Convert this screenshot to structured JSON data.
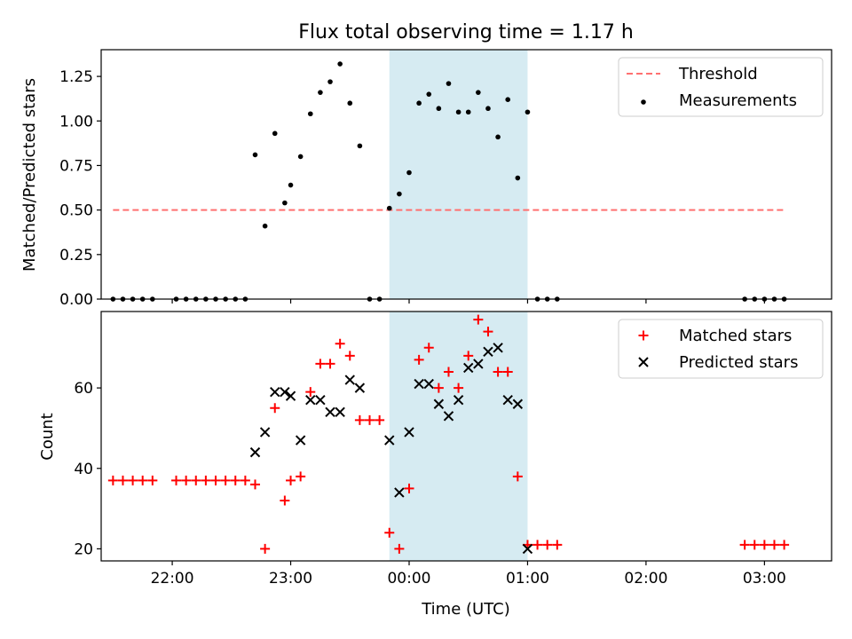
{
  "chart_data": [
    {
      "type": "scatter",
      "title": "Flux total observing time = 1.17 h",
      "xlabel": "",
      "ylabel": "Matched/Predicted stars",
      "ylim": [
        0,
        1.4
      ],
      "yticks": [
        "0.00",
        "0.25",
        "0.50",
        "0.75",
        "1.00",
        "1.25"
      ],
      "legend": {
        "placement": "top-right",
        "entries": [
          "Threshold",
          "Measurements"
        ]
      },
      "shaded_region": {
        "start": "23:50",
        "end": "01:00",
        "color": "#add8e6"
      },
      "threshold": {
        "name": "Threshold",
        "y": 0.5,
        "x_start": "21:30",
        "x_end": "03:10",
        "color": "#ff7070",
        "style": "dashed"
      },
      "series": [
        {
          "name": "Measurements",
          "color": "#000000",
          "marker": "dot",
          "points": [
            [
              "21:30",
              0
            ],
            [
              "21:35",
              0
            ],
            [
              "21:40",
              0
            ],
            [
              "21:45",
              0
            ],
            [
              "21:50",
              0
            ],
            [
              "22:02",
              0
            ],
            [
              "22:07",
              0
            ],
            [
              "22:12",
              0
            ],
            [
              "22:17",
              0
            ],
            [
              "22:22",
              0
            ],
            [
              "22:27",
              0
            ],
            [
              "22:32",
              0
            ],
            [
              "22:37",
              0
            ],
            [
              "22:42",
              0.81
            ],
            [
              "22:47",
              0.41
            ],
            [
              "22:52",
              0.93
            ],
            [
              "22:57",
              0.54
            ],
            [
              "23:00",
              0.64
            ],
            [
              "23:05",
              0.8
            ],
            [
              "23:10",
              1.04
            ],
            [
              "23:15",
              1.16
            ],
            [
              "23:20",
              1.22
            ],
            [
              "23:25",
              1.32
            ],
            [
              "23:30",
              1.1
            ],
            [
              "23:35",
              0.86
            ],
            [
              "23:40",
              0
            ],
            [
              "23:45",
              0
            ],
            [
              "23:50",
              0.51
            ],
            [
              "23:55",
              0.59
            ],
            [
              "00:00",
              0.71
            ],
            [
              "00:05",
              1.1
            ],
            [
              "00:10",
              1.15
            ],
            [
              "00:15",
              1.07
            ],
            [
              "00:20",
              1.21
            ],
            [
              "00:25",
              1.05
            ],
            [
              "00:30",
              1.05
            ],
            [
              "00:35",
              1.16
            ],
            [
              "00:40",
              1.07
            ],
            [
              "00:45",
              0.91
            ],
            [
              "00:50",
              1.12
            ],
            [
              "00:55",
              0.68
            ],
            [
              "01:00",
              1.05
            ],
            [
              "01:05",
              0
            ],
            [
              "01:10",
              0
            ],
            [
              "01:15",
              0
            ],
            [
              "02:50",
              0
            ],
            [
              "02:55",
              0
            ],
            [
              "03:00",
              0
            ],
            [
              "03:05",
              0
            ],
            [
              "03:10",
              0
            ]
          ]
        }
      ]
    },
    {
      "type": "scatter",
      "title": "",
      "xlabel": "Time (UTC)",
      "ylabel": "Count",
      "ylim": [
        17,
        79
      ],
      "yticks": [
        "20",
        "40",
        "60"
      ],
      "xlim": [
        "21:24",
        "03:34"
      ],
      "xticks": [
        "22:00",
        "23:00",
        "00:00",
        "01:00",
        "02:00",
        "03:00"
      ],
      "legend": {
        "placement": "top-right",
        "entries": [
          "Matched stars",
          "Predicted stars"
        ]
      },
      "shaded_region": {
        "start": "23:50",
        "end": "01:00",
        "color": "#add8e6"
      },
      "series": [
        {
          "name": "Matched stars",
          "color": "#ff0000",
          "marker": "plus",
          "points": [
            [
              "21:30",
              37
            ],
            [
              "21:35",
              37
            ],
            [
              "21:40",
              37
            ],
            [
              "21:45",
              37
            ],
            [
              "21:50",
              37
            ],
            [
              "22:02",
              37
            ],
            [
              "22:07",
              37
            ],
            [
              "22:12",
              37
            ],
            [
              "22:17",
              37
            ],
            [
              "22:22",
              37
            ],
            [
              "22:27",
              37
            ],
            [
              "22:32",
              37
            ],
            [
              "22:37",
              37
            ],
            [
              "22:42",
              36
            ],
            [
              "22:47",
              20
            ],
            [
              "22:52",
              55
            ],
            [
              "22:57",
              32
            ],
            [
              "23:00",
              37
            ],
            [
              "23:05",
              38
            ],
            [
              "23:10",
              59
            ],
            [
              "23:15",
              66
            ],
            [
              "23:20",
              66
            ],
            [
              "23:25",
              71
            ],
            [
              "23:30",
              68
            ],
            [
              "23:35",
              52
            ],
            [
              "23:40",
              52
            ],
            [
              "23:45",
              52
            ],
            [
              "23:50",
              24
            ],
            [
              "23:55",
              20
            ],
            [
              "00:00",
              35
            ],
            [
              "00:05",
              67
            ],
            [
              "00:10",
              70
            ],
            [
              "00:15",
              60
            ],
            [
              "00:20",
              64
            ],
            [
              "00:25",
              60
            ],
            [
              "00:30",
              68
            ],
            [
              "00:35",
              77
            ],
            [
              "00:40",
              74
            ],
            [
              "00:45",
              64
            ],
            [
              "00:50",
              64
            ],
            [
              "00:55",
              38
            ],
            [
              "01:00",
              21
            ],
            [
              "01:05",
              21
            ],
            [
              "01:10",
              21
            ],
            [
              "01:15",
              21
            ],
            [
              "02:50",
              21
            ],
            [
              "02:55",
              21
            ],
            [
              "03:00",
              21
            ],
            [
              "03:05",
              21
            ],
            [
              "03:10",
              21
            ]
          ]
        },
        {
          "name": "Predicted stars",
          "color": "#000000",
          "marker": "x",
          "points": [
            [
              "22:42",
              44
            ],
            [
              "22:47",
              49
            ],
            [
              "22:52",
              59
            ],
            [
              "22:57",
              59
            ],
            [
              "23:00",
              58
            ],
            [
              "23:05",
              47
            ],
            [
              "23:10",
              57
            ],
            [
              "23:15",
              57
            ],
            [
              "23:20",
              54
            ],
            [
              "23:25",
              54
            ],
            [
              "23:30",
              62
            ],
            [
              "23:35",
              60
            ],
            [
              "23:50",
              47
            ],
            [
              "23:55",
              34
            ],
            [
              "00:00",
              49
            ],
            [
              "00:05",
              61
            ],
            [
              "00:10",
              61
            ],
            [
              "00:15",
              56
            ],
            [
              "00:20",
              53
            ],
            [
              "00:25",
              57
            ],
            [
              "00:30",
              65
            ],
            [
              "00:35",
              66
            ],
            [
              "00:40",
              69
            ],
            [
              "00:45",
              70
            ],
            [
              "00:50",
              57
            ],
            [
              "00:55",
              56
            ],
            [
              "01:00",
              20
            ]
          ]
        }
      ]
    }
  ]
}
